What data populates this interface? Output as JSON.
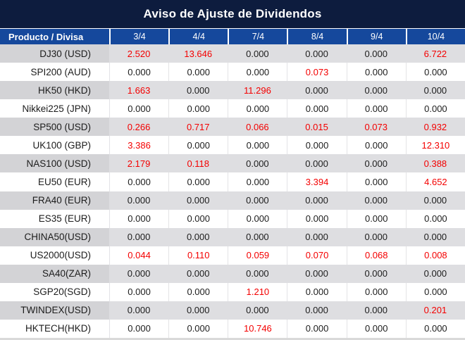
{
  "chart_data": {
    "type": "table",
    "title": "Aviso de Ajuste de Dividendos",
    "row_header_label": "Producto / Divisa",
    "columns": [
      "3/4",
      "4/4",
      "7/4",
      "8/4",
      "9/4",
      "10/4"
    ],
    "rows": [
      {
        "product": "DJ30 (USD)",
        "values": [
          "2.520",
          "13.646",
          "0.000",
          "0.000",
          "0.000",
          "6.722"
        ]
      },
      {
        "product": "SPI200 (AUD)",
        "values": [
          "0.000",
          "0.000",
          "0.000",
          "0.073",
          "0.000",
          "0.000"
        ]
      },
      {
        "product": "HK50 (HKD)",
        "values": [
          "1.663",
          "0.000",
          "11.296",
          "0.000",
          "0.000",
          "0.000"
        ]
      },
      {
        "product": "Nikkei225 (JPN)",
        "values": [
          "0.000",
          "0.000",
          "0.000",
          "0.000",
          "0.000",
          "0.000"
        ]
      },
      {
        "product": "SP500 (USD)",
        "values": [
          "0.266",
          "0.717",
          "0.066",
          "0.015",
          "0.073",
          "0.932"
        ]
      },
      {
        "product": "UK100 (GBP)",
        "values": [
          "3.386",
          "0.000",
          "0.000",
          "0.000",
          "0.000",
          "12.310"
        ]
      },
      {
        "product": "NAS100 (USD)",
        "values": [
          "2.179",
          "0.118",
          "0.000",
          "0.000",
          "0.000",
          "0.388"
        ]
      },
      {
        "product": "EU50 (EUR)",
        "values": [
          "0.000",
          "0.000",
          "0.000",
          "3.394",
          "0.000",
          "4.652"
        ]
      },
      {
        "product": "FRA40 (EUR)",
        "values": [
          "0.000",
          "0.000",
          "0.000",
          "0.000",
          "0.000",
          "0.000"
        ]
      },
      {
        "product": "ES35 (EUR)",
        "values": [
          "0.000",
          "0.000",
          "0.000",
          "0.000",
          "0.000",
          "0.000"
        ]
      },
      {
        "product": "CHINA50(USD)",
        "values": [
          "0.000",
          "0.000",
          "0.000",
          "0.000",
          "0.000",
          "0.000"
        ]
      },
      {
        "product": "US2000(USD)",
        "values": [
          "0.044",
          "0.110",
          "0.059",
          "0.070",
          "0.068",
          "0.008"
        ]
      },
      {
        "product": "SA40(ZAR)",
        "values": [
          "0.000",
          "0.000",
          "0.000",
          "0.000",
          "0.000",
          "0.000"
        ]
      },
      {
        "product": "SGP20(SGD)",
        "values": [
          "0.000",
          "0.000",
          "1.210",
          "0.000",
          "0.000",
          "0.000"
        ]
      },
      {
        "product": "TWINDEX(USD)",
        "values": [
          "0.000",
          "0.000",
          "0.000",
          "0.000",
          "0.000",
          "0.201"
        ]
      },
      {
        "product": "HKTECH(HKD)",
        "values": [
          "0.000",
          "0.000",
          "10.746",
          "0.000",
          "0.000",
          "0.000"
        ]
      }
    ],
    "legend": "non-zero adjustment values shown in red, zero values in black",
    "layout": {
      "striped_rows": true,
      "stripe_on_odd_rows_1_based": true
    }
  },
  "colors": {
    "title_bg": "#0d1c3e",
    "header_bg": "#15489c",
    "stripe_row_bg": "#dedee1",
    "stripe_row_first_col_bg": "#d3d3d6",
    "plain_row_bg": "#ffffff",
    "nonzero_value": "#f40000",
    "zero_value": "#1c1c1c"
  }
}
